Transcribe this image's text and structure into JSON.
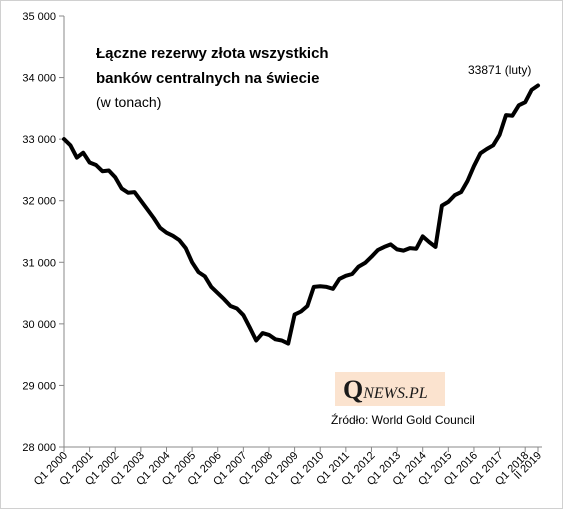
{
  "chart_data": {
    "type": "line",
    "title_lines": [
      "Łączne rezerwy złota wszystkich",
      "banków centralnych na świecie"
    ],
    "subtitle": "(w tonach)",
    "annotation": "33871 (luty)",
    "source": "Źródło: World Gold Council",
    "logo": {
      "q": "Q",
      "rest": "NEWS.PL",
      "background": "#fbe3cf"
    },
    "ylim": [
      28000,
      35000
    ],
    "yticks": [
      28000,
      29000,
      30000,
      31000,
      32000,
      33000,
      34000,
      35000
    ],
    "ytick_labels": [
      "28 000",
      "29 000",
      "30 000",
      "31 000",
      "32 000",
      "33 000",
      "34 000",
      "35 000"
    ],
    "xtick_labels": [
      "Q1 2000",
      "Q1 2001",
      "Q1 2002",
      "Q1 2003",
      "Q1 2004",
      "Q1 2005",
      "Q1 2006",
      "Q1 2007",
      "Q1 2008",
      "Q1 2009",
      "Q1 2010",
      "Q1 2011",
      "Q1 2012",
      "Q1 2013",
      "Q1 2014",
      "Q1 2015",
      "Q1 2016",
      "Q1 2017",
      "Q1 2018",
      "II 2019"
    ],
    "line_color": "#000000",
    "series": [
      {
        "values": [
          33000,
          32900,
          32700,
          32780,
          32620,
          32580,
          32480,
          32490,
          32380,
          32200,
          32130,
          32140,
          32000,
          31860,
          31720,
          31560,
          31480,
          31430,
          31360,
          31230,
          31000,
          30840,
          30770,
          30600,
          30500,
          30400,
          30290,
          30250,
          30140,
          29940,
          29730,
          29850,
          29820,
          29750,
          29730,
          29680,
          30150,
          30200,
          30290,
          30600,
          30610,
          30600,
          30570,
          30730,
          30780,
          30810,
          30930,
          30990,
          31090,
          31200,
          31250,
          31290,
          31210,
          31190,
          31230,
          31220,
          31420,
          31330,
          31250,
          31920,
          31980,
          32090,
          32140,
          32320,
          32560,
          32770,
          32840,
          32900,
          33070,
          33390,
          33380,
          33550,
          33600,
          33800,
          33871
        ]
      }
    ]
  }
}
